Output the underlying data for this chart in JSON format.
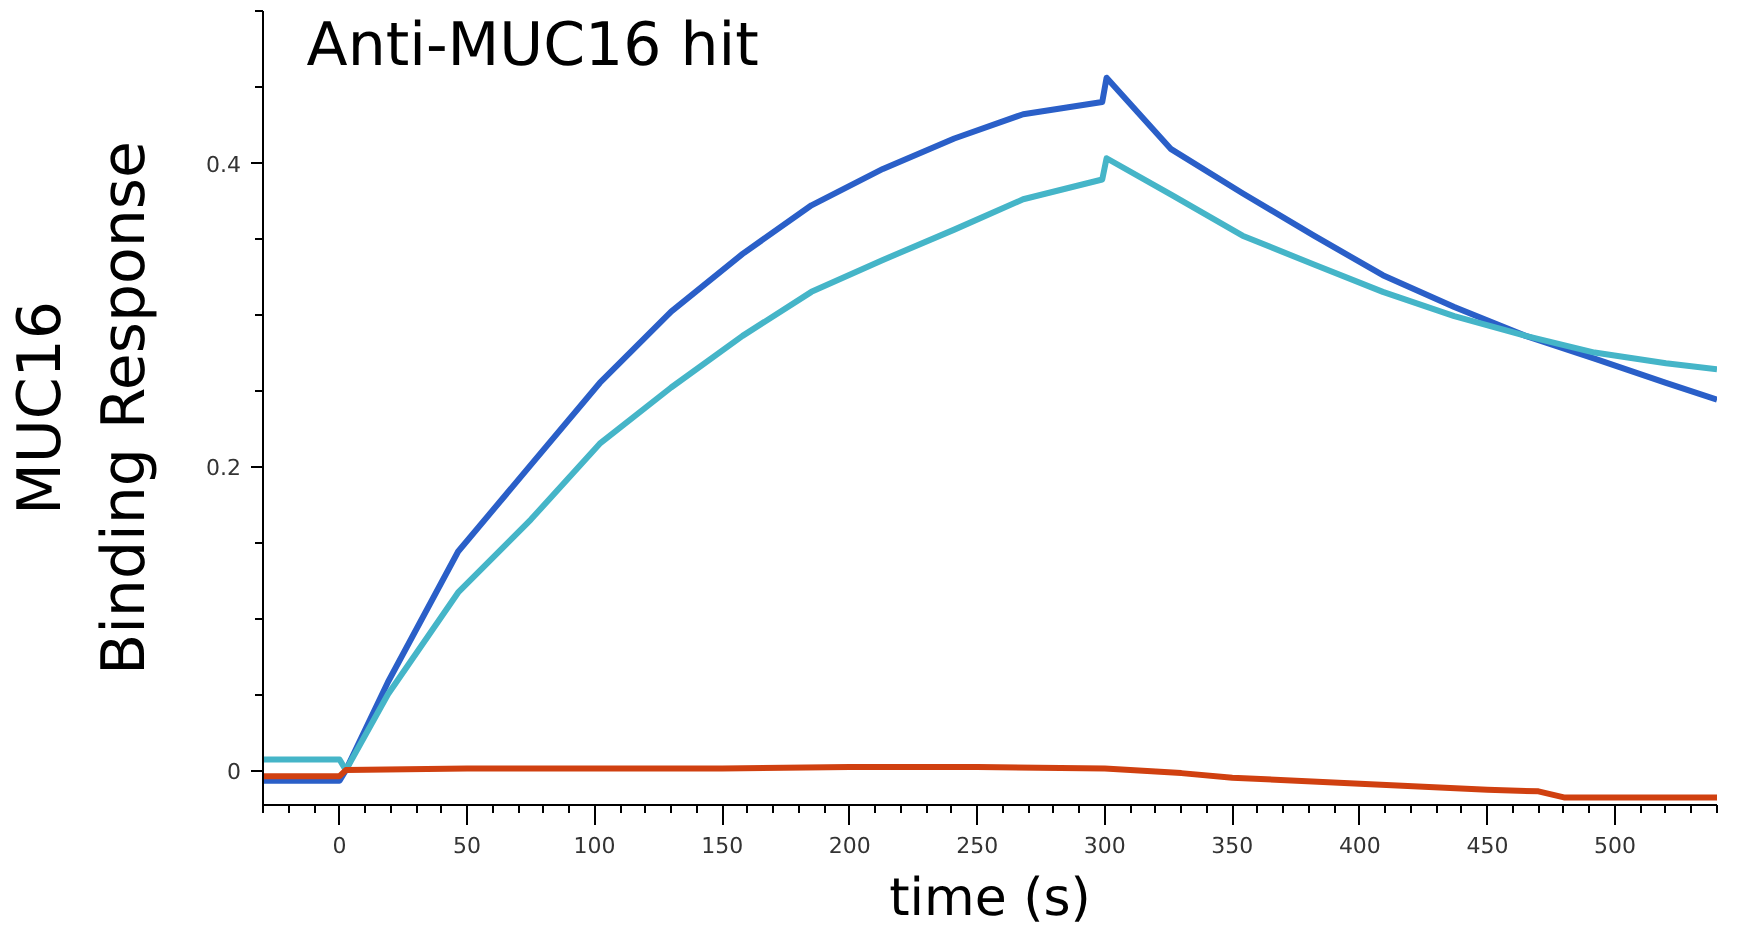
{
  "chart_data": {
    "type": "line",
    "title": "Anti-MUC16 hit",
    "xlabel": "time (s)",
    "ylabel": "MUC16\nBinding Response",
    "xlim": [
      -30,
      540
    ],
    "ylim": [
      -0.023,
      0.5
    ],
    "xticks": [
      0,
      50,
      100,
      150,
      200,
      250,
      300,
      350,
      400,
      450,
      500
    ],
    "yticks": [
      0,
      {
        "value": 0.2,
        "label": "0.2"
      },
      {
        "value": 0.4,
        "label": "0.4"
      }
    ],
    "marker": "none",
    "line_style": "solid",
    "series": [
      {
        "color": "#2a5fc8",
        "x": [
          -30,
          -15,
          0,
          2.5,
          19,
          46.5,
          75,
          102,
          130,
          158,
          185,
          213,
          241,
          268,
          299,
          300.7,
          326,
          354,
          382,
          409,
          437,
          465,
          492,
          520,
          540
        ],
        "values": [
          -0.007,
          -0.007,
          -0.007,
          0,
          0.058,
          0.144,
          0.201,
          0.255,
          0.302,
          0.34,
          0.372,
          0.396,
          0.416,
          0.432,
          0.44,
          0.456,
          0.409,
          0.38,
          0.352,
          0.326,
          0.305,
          0.286,
          0.271,
          0.255,
          0.244
        ]
      },
      {
        "color": "#45b5c8",
        "x": [
          -30,
          -15,
          0,
          2.5,
          19,
          46.5,
          75,
          102,
          130,
          158,
          185,
          213,
          241,
          268,
          299,
          300.7,
          326,
          354,
          382,
          409,
          437,
          465,
          492,
          520,
          540
        ],
        "values": [
          0.007,
          0.007,
          0.007,
          0,
          0.05,
          0.117,
          0.165,
          0.215,
          0.252,
          0.286,
          0.315,
          0.336,
          0.356,
          0.376,
          0.389,
          0.403,
          0.379,
          0.352,
          0.333,
          0.315,
          0.299,
          0.286,
          0.275,
          0.268,
          0.264
        ]
      },
      {
        "color": "#d04010",
        "x": [
          -30,
          -15,
          0,
          2.5,
          50,
          100,
          150,
          200,
          250,
          300,
          330,
          350,
          400,
          450,
          470,
          480,
          540
        ],
        "values": [
          -0.004,
          -0.004,
          -0.004,
          0,
          0.001,
          0.001,
          0.001,
          0.002,
          0.002,
          0.001,
          -0.002,
          -0.005,
          -0.009,
          -0.013,
          -0.014,
          -0.018,
          -0.018
        ]
      }
    ]
  }
}
